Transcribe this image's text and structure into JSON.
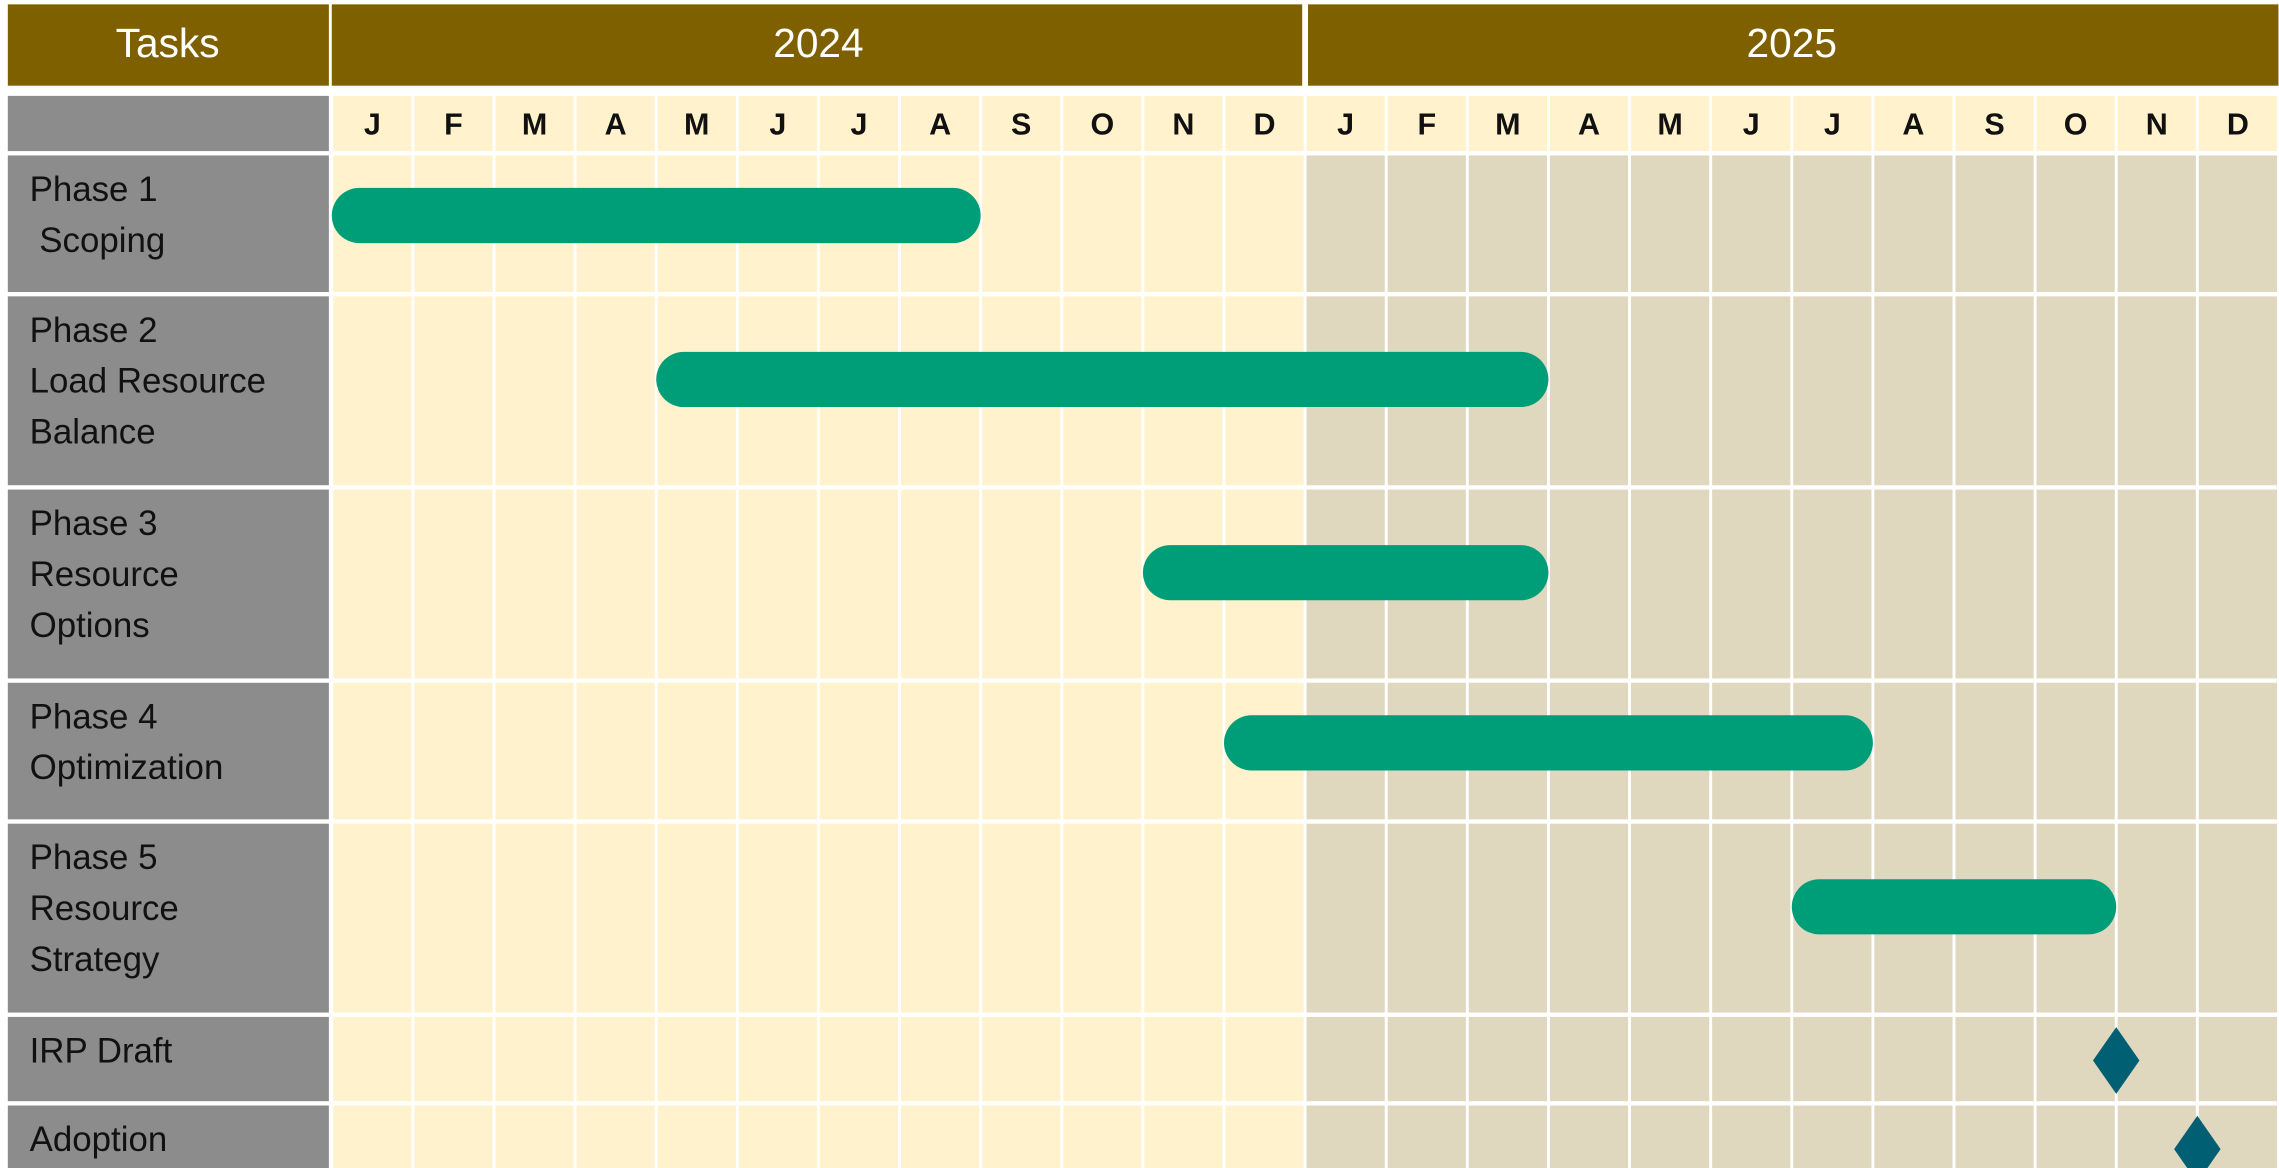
{
  "chart_data": {
    "type": "gantt",
    "header": "Tasks",
    "years": [
      "2024",
      "2025"
    ],
    "months": [
      "J",
      "F",
      "M",
      "A",
      "M",
      "J",
      "J",
      "A",
      "S",
      "O",
      "N",
      "D",
      "J",
      "F",
      "M",
      "A",
      "M",
      "J",
      "J",
      "A",
      "S",
      "O",
      "N",
      "D"
    ],
    "bar_color": "#009e78",
    "milestone_color": "#005f73",
    "tasks": [
      {
        "label": [
          "Phase 1",
          " Scoping"
        ],
        "start": "2024-01",
        "end": "2024-08"
      },
      {
        "label": [
          "Phase 2",
          "Load Resource",
          "Balance"
        ],
        "start": "2024-05",
        "end": "2025-03"
      },
      {
        "label": [
          "Phase 3",
          "Resource",
          "Options"
        ],
        "start": "2024-11",
        "end": "2025-03"
      },
      {
        "label": [
          "Phase 4",
          "Optimization"
        ],
        "start": "2024-12",
        "end": "2025-07"
      },
      {
        "label": [
          "Phase 5",
          "Resource",
          "Strategy"
        ],
        "start": "2025-07",
        "end": "2025-10"
      },
      {
        "label": [
          "IRP Draft"
        ],
        "milestone": "2025-10"
      },
      {
        "label": [
          "Adoption"
        ],
        "milestone": "2025-11"
      }
    ]
  }
}
